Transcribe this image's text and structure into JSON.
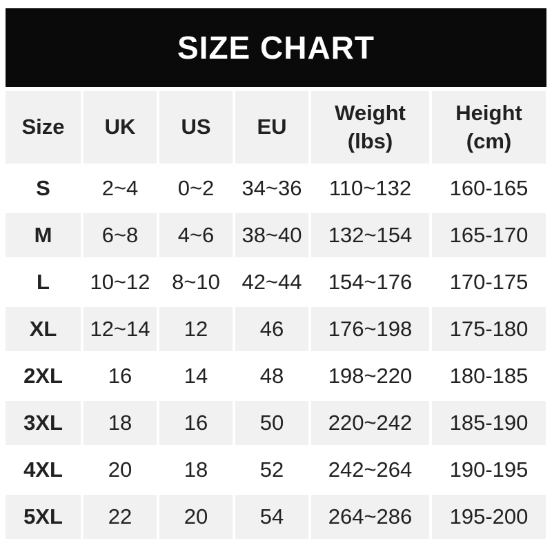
{
  "banner": {
    "title": "SIZE CHART"
  },
  "colors": {
    "banner_bg": "#0a0a0a",
    "banner_text": "#ffffff",
    "shaded_row_bg": "#f1f1f1",
    "text": "#212121",
    "page_bg": "#ffffff"
  },
  "table": {
    "headers": [
      {
        "label": "Size",
        "sub": ""
      },
      {
        "label": "UK",
        "sub": ""
      },
      {
        "label": "US",
        "sub": ""
      },
      {
        "label": "EU",
        "sub": ""
      },
      {
        "label": "Weight",
        "sub": "(lbs)"
      },
      {
        "label": "Height",
        "sub": "(cm)"
      }
    ]
  },
  "chart_data": {
    "type": "table",
    "title": "SIZE CHART",
    "columns": [
      "Size",
      "UK",
      "US",
      "EU",
      "Weight (lbs)",
      "Height (cm)"
    ],
    "rows": [
      [
        "S",
        "2~4",
        "0~2",
        "34~36",
        "110~132",
        "160-165"
      ],
      [
        "M",
        "6~8",
        "4~6",
        "38~40",
        "132~154",
        "165-170"
      ],
      [
        "L",
        "10~12",
        "8~10",
        "42~44",
        "154~176",
        "170-175"
      ],
      [
        "XL",
        "12~14",
        "12",
        "46",
        "176~198",
        "175-180"
      ],
      [
        "2XL",
        "16",
        "14",
        "48",
        "198~220",
        "180-185"
      ],
      [
        "3XL",
        "18",
        "16",
        "50",
        "220~242",
        "185-190"
      ],
      [
        "4XL",
        "20",
        "18",
        "52",
        "242~264",
        "190-195"
      ],
      [
        "5XL",
        "22",
        "20",
        "54",
        "264~286",
        "195-200"
      ]
    ]
  }
}
